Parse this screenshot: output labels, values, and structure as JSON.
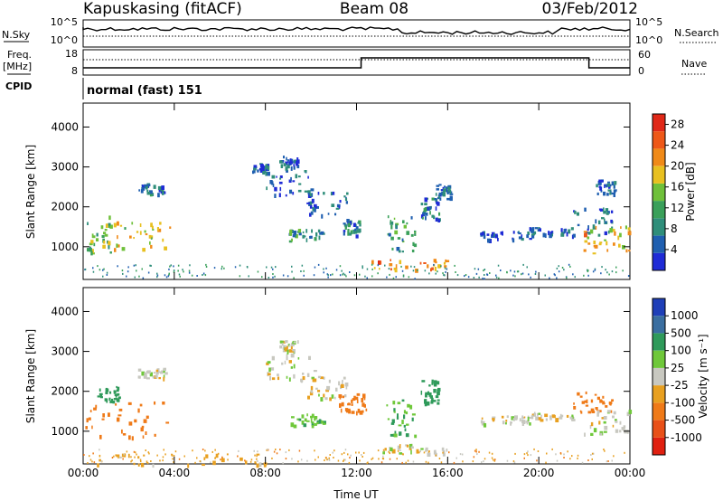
{
  "header": {
    "station": "Kapuskasing (fitACF)",
    "beam": "Beam 08",
    "date": "03/Feb/2012"
  },
  "panels": {
    "nsky": {
      "label": "N.Sky",
      "right_label": "N.Search",
      "ticks": [
        "10^5",
        "10^0"
      ]
    },
    "freq": {
      "label_top": "Freq.",
      "label_bottom": "[MHz]",
      "ticks": [
        "18",
        "8"
      ],
      "right_label": "Nave",
      "right_ticks": [
        "60",
        "0"
      ]
    },
    "cpid": {
      "label": "CPID",
      "value": "normal (fast) 151"
    }
  },
  "chart_data": [
    {
      "type": "heatmap",
      "name": "power",
      "ylabel": "Slant Range [km]",
      "xlabel": "Time UT",
      "x_ticks": [
        "00:00",
        "04:00",
        "08:00",
        "12:00",
        "16:00",
        "20:00",
        "00:00"
      ],
      "xlim_hours": [
        0,
        24
      ],
      "y_ticks": [
        1000,
        2000,
        3000,
        4000
      ],
      "ylim": [
        180,
        4600
      ],
      "colorbar": {
        "label": "Power [dB]",
        "ticks": [
          4,
          8,
          12,
          16,
          20,
          24,
          28
        ],
        "range": [
          0,
          30
        ],
        "colors": [
          "#1f2bd6",
          "#1f5fb0",
          "#2f8e7a",
          "#3aa05a",
          "#6fc03a",
          "#e8c020",
          "#f08a18",
          "#ee5818",
          "#e02818"
        ]
      },
      "regions": [
        {
          "t": [
            0.0,
            1.2
          ],
          "r": [
            850,
            1850
          ],
          "level": 14
        },
        {
          "t": [
            1.2,
            3.8
          ],
          "r": [
            950,
            1650
          ],
          "level": 18
        },
        {
          "t": [
            2.4,
            3.6
          ],
          "r": [
            2350,
            2600
          ],
          "level": 6
        },
        {
          "t": [
            7.4,
            8.1
          ],
          "r": [
            2850,
            3100
          ],
          "level": 5
        },
        {
          "t": [
            8.0,
            10.2
          ],
          "r": [
            2300,
            2950
          ],
          "level": 6
        },
        {
          "t": [
            8.6,
            9.4
          ],
          "r": [
            3000,
            3300
          ],
          "level": 4
        },
        {
          "t": [
            9.8,
            11.6
          ],
          "r": [
            1800,
            2400
          ],
          "level": 5
        },
        {
          "t": [
            9.0,
            10.6
          ],
          "r": [
            1150,
            1450
          ],
          "level": 10
        },
        {
          "t": [
            11.4,
            12.2
          ],
          "r": [
            1300,
            1700
          ],
          "level": 7
        },
        {
          "t": [
            12.5,
            16.0
          ],
          "r": [
            450,
            700
          ],
          "level": 22
        },
        {
          "t": [
            13.3,
            14.6
          ],
          "r": [
            900,
            1800
          ],
          "level": 10
        },
        {
          "t": [
            14.8,
            15.6
          ],
          "r": [
            1700,
            2300
          ],
          "level": 7
        },
        {
          "t": [
            15.4,
            16.2
          ],
          "r": [
            2200,
            2600
          ],
          "level": 6
        },
        {
          "t": [
            17.4,
            19.6
          ],
          "r": [
            1200,
            1400
          ],
          "level": 4
        },
        {
          "t": [
            19.5,
            21.5
          ],
          "r": [
            1300,
            1500
          ],
          "level": 5
        },
        {
          "t": [
            21.5,
            23.2
          ],
          "r": [
            1300,
            2000
          ],
          "level": 5
        },
        {
          "t": [
            21.8,
            24.0
          ],
          "r": [
            850,
            1550
          ],
          "level": 19
        },
        {
          "t": [
            22.5,
            23.3
          ],
          "r": [
            2350,
            2700
          ],
          "level": 5
        }
      ]
    },
    {
      "type": "heatmap",
      "name": "velocity",
      "ylabel": "Slant Range [km]",
      "xlabel": "Time UT",
      "x_ticks": [
        "00:00",
        "04:00",
        "08:00",
        "12:00",
        "16:00",
        "20:00",
        "00:00"
      ],
      "xlim_hours": [
        0,
        24
      ],
      "y_ticks": [
        1000,
        2000,
        3000,
        4000
      ],
      "ylim": [
        180,
        4600
      ],
      "colorbar": {
        "label": "Velocity [m s⁻¹]",
        "ticks": [
          "1000",
          "500",
          "100",
          "25",
          "-25",
          "-100",
          "-500",
          "-1000"
        ],
        "colors": [
          "#1f3fb8",
          "#3a6ea0",
          "#2f9a5a",
          "#6fc83a",
          "#c8c8c0",
          "#e8a020",
          "#ef7a18",
          "#e85018",
          "#e02010"
        ]
      },
      "regions": [
        {
          "t": [
            0.0,
            3.8
          ],
          "r": [
            850,
            1750
          ],
          "level": -300
        },
        {
          "t": [
            0.6,
            1.6
          ],
          "r": [
            1750,
            2150
          ],
          "level": 200
        },
        {
          "t": [
            2.4,
            3.6
          ],
          "r": [
            2350,
            2600
          ],
          "level": 0
        },
        {
          "t": [
            8.0,
            10.2
          ],
          "r": [
            2300,
            2950
          ],
          "level": 0
        },
        {
          "t": [
            8.6,
            9.4
          ],
          "r": [
            3000,
            3300
          ],
          "level": 0
        },
        {
          "t": [
            9.8,
            11.6
          ],
          "r": [
            1800,
            2400
          ],
          "level": 0
        },
        {
          "t": [
            9.0,
            10.6
          ],
          "r": [
            1150,
            1450
          ],
          "level": 80
        },
        {
          "t": [
            11.2,
            12.4
          ],
          "r": [
            1500,
            2000
          ],
          "level": -200
        },
        {
          "t": [
            12.5,
            16.0
          ],
          "r": [
            450,
            700
          ],
          "level": 0
        },
        {
          "t": [
            13.3,
            14.6
          ],
          "r": [
            900,
            1800
          ],
          "level": 100
        },
        {
          "t": [
            14.8,
            15.6
          ],
          "r": [
            1700,
            2300
          ],
          "level": 150
        },
        {
          "t": [
            17.4,
            19.6
          ],
          "r": [
            1200,
            1400
          ],
          "level": 0
        },
        {
          "t": [
            19.5,
            21.5
          ],
          "r": [
            1300,
            1500
          ],
          "level": 0
        },
        {
          "t": [
            21.5,
            23.2
          ],
          "r": [
            1500,
            2000
          ],
          "level": -150
        },
        {
          "t": [
            21.8,
            24.0
          ],
          "r": [
            900,
            1550
          ],
          "level": 0
        },
        {
          "t": [
            0.5,
            8.0
          ],
          "r": [
            180,
            450
          ],
          "level": -60
        }
      ]
    }
  ]
}
